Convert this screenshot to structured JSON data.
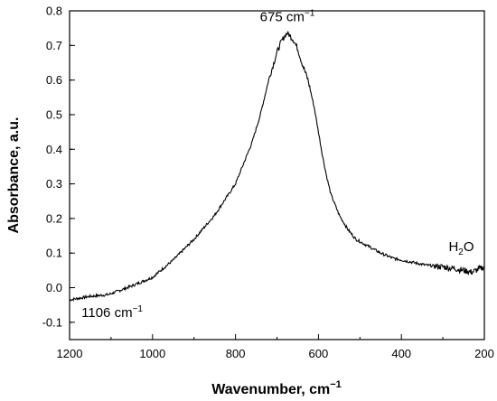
{
  "chart_data": {
    "type": "line",
    "xlabel": "Wavenumber, cm",
    "xlabel_sup": "−1",
    "ylabel": "Absorbance, a.u.",
    "xlim": [
      1200,
      200
    ],
    "ylim": [
      -0.15,
      0.8
    ],
    "x_ticks": [
      "1200",
      "1000",
      "800",
      "600",
      "400",
      "200"
    ],
    "y_ticks": [
      "0.8",
      "0.7",
      "0.6",
      "0.5",
      "0.4",
      "0.3",
      "0.2",
      "0.1",
      "0.0",
      "-0.1"
    ],
    "grid": false,
    "line_color": "#000000",
    "annotations": [
      {
        "id": "peak",
        "main": "675 cm",
        "sup": "−1",
        "x": 675,
        "y": 0.77
      },
      {
        "id": "low",
        "main": "1106 cm",
        "sup": "−1",
        "x": 1106,
        "y": -0.085
      },
      {
        "id": "water",
        "main": "H",
        "sub": "2",
        "tail": "O",
        "x": 260,
        "y": 0.09
      }
    ],
    "series": [
      {
        "x": [
          1200,
          1150,
          1106,
          1050,
          1000,
          950,
          900,
          850,
          800,
          760,
          740,
          720,
          700,
          690,
          680,
          675,
          670,
          660,
          650,
          640,
          625,
          610,
          600,
          590,
          580,
          570,
          560,
          550,
          530,
          510,
          480,
          450,
          420,
          380,
          340,
          300,
          270,
          250,
          230,
          210,
          200
        ],
        "y": [
          -0.035,
          -0.025,
          -0.02,
          0.005,
          0.03,
          0.08,
          0.14,
          0.21,
          0.3,
          0.42,
          0.5,
          0.6,
          0.68,
          0.71,
          0.73,
          0.735,
          0.73,
          0.715,
          0.69,
          0.65,
          0.6,
          0.52,
          0.45,
          0.38,
          0.32,
          0.27,
          0.24,
          0.21,
          0.17,
          0.14,
          0.12,
          0.1,
          0.085,
          0.075,
          0.065,
          0.06,
          0.055,
          0.05,
          0.045,
          0.055,
          0.06
        ]
      }
    ]
  }
}
